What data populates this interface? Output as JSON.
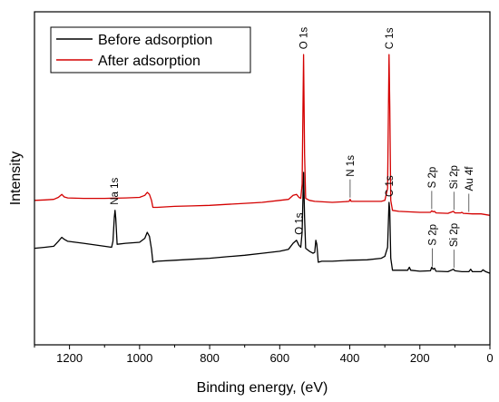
{
  "chart_data": {
    "type": "line",
    "xlabel": "Binding energy, (eV)",
    "ylabel": "Intensity",
    "xlim": [
      1300,
      0
    ],
    "x_reversed": true,
    "xticks": [
      1200,
      1000,
      800,
      600,
      400,
      200,
      0
    ],
    "y_ticks_shown": false,
    "legend": {
      "placement": "top-left"
    },
    "series": [
      {
        "name": "Before adsorption",
        "color": "#000000",
        "baseline": 0.0,
        "points": [
          [
            1300,
            0.24
          ],
          [
            1270,
            0.25
          ],
          [
            1245,
            0.26
          ],
          [
            1232,
            0.31
          ],
          [
            1222,
            0.35
          ],
          [
            1215,
            0.33
          ],
          [
            1205,
            0.31
          ],
          [
            1160,
            0.29
          ],
          [
            1100,
            0.26
          ],
          [
            1080,
            0.25
          ],
          [
            1076,
            0.31
          ],
          [
            1072,
            0.55
          ],
          [
            1070,
            0.62
          ],
          [
            1068,
            0.54
          ],
          [
            1064,
            0.28
          ],
          [
            1040,
            0.29
          ],
          [
            1000,
            0.3
          ],
          [
            985,
            0.34
          ],
          [
            978,
            0.4
          ],
          [
            972,
            0.36
          ],
          [
            966,
            0.23
          ],
          [
            962,
            0.1
          ],
          [
            950,
            0.11
          ],
          [
            900,
            0.12
          ],
          [
            850,
            0.13
          ],
          [
            800,
            0.14
          ],
          [
            750,
            0.155
          ],
          [
            700,
            0.17
          ],
          [
            650,
            0.19
          ],
          [
            600,
            0.21
          ],
          [
            575,
            0.23
          ],
          [
            562,
            0.29
          ],
          [
            552,
            0.32
          ],
          [
            545,
            0.27
          ],
          [
            540,
            0.25
          ],
          [
            536,
            0.4
          ],
          [
            532,
            1.0
          ],
          [
            529,
            0.55
          ],
          [
            526,
            0.24
          ],
          [
            515,
            0.21
          ],
          [
            505,
            0.19
          ],
          [
            500,
            0.2
          ],
          [
            497,
            0.32
          ],
          [
            494,
            0.28
          ],
          [
            490,
            0.1
          ],
          [
            480,
            0.11
          ],
          [
            450,
            0.11
          ],
          [
            400,
            0.12
          ],
          [
            350,
            0.125
          ],
          [
            310,
            0.14
          ],
          [
            300,
            0.16
          ],
          [
            292,
            0.25
          ],
          [
            288,
            0.7
          ],
          [
            286,
            0.62
          ],
          [
            283,
            0.14
          ],
          [
            278,
            0.02
          ],
          [
            260,
            0.02
          ],
          [
            235,
            0.02
          ],
          [
            230,
            0.05
          ],
          [
            226,
            0.02
          ],
          [
            200,
            0.01
          ],
          [
            170,
            0.015
          ],
          [
            166,
            0.05
          ],
          [
            162,
            0.03
          ],
          [
            158,
            0.04
          ],
          [
            154,
            0.01
          ],
          [
            120,
            0.005
          ],
          [
            104,
            0.03
          ],
          [
            100,
            0.015
          ],
          [
            80,
            0.005
          ],
          [
            60,
            0.005
          ],
          [
            55,
            0.03
          ],
          [
            50,
            0.005
          ],
          [
            25,
            0.005
          ],
          [
            20,
            0.025
          ],
          [
            12,
            0.005
          ],
          [
            0,
            -0.01
          ]
        ]
      },
      {
        "name": "After adsorption",
        "color": "#d40000",
        "baseline": 0.58,
        "points": [
          [
            1300,
            0.14
          ],
          [
            1270,
            0.145
          ],
          [
            1245,
            0.15
          ],
          [
            1232,
            0.17
          ],
          [
            1222,
            0.2
          ],
          [
            1215,
            0.175
          ],
          [
            1205,
            0.165
          ],
          [
            1160,
            0.16
          ],
          [
            1100,
            0.16
          ],
          [
            1040,
            0.165
          ],
          [
            1000,
            0.17
          ],
          [
            985,
            0.19
          ],
          [
            978,
            0.22
          ],
          [
            972,
            0.2
          ],
          [
            966,
            0.14
          ],
          [
            962,
            0.07
          ],
          [
            950,
            0.07
          ],
          [
            900,
            0.08
          ],
          [
            850,
            0.085
          ],
          [
            800,
            0.09
          ],
          [
            750,
            0.1
          ],
          [
            700,
            0.11
          ],
          [
            650,
            0.12
          ],
          [
            600,
            0.14
          ],
          [
            575,
            0.15
          ],
          [
            562,
            0.19
          ],
          [
            552,
            0.2
          ],
          [
            545,
            0.17
          ],
          [
            540,
            0.16
          ],
          [
            536,
            0.3
          ],
          [
            532,
            1.6
          ],
          [
            529,
            0.6
          ],
          [
            526,
            0.16
          ],
          [
            515,
            0.14
          ],
          [
            500,
            0.13
          ],
          [
            450,
            0.12
          ],
          [
            420,
            0.125
          ],
          [
            402,
            0.13
          ],
          [
            399,
            0.15
          ],
          [
            396,
            0.13
          ],
          [
            350,
            0.13
          ],
          [
            310,
            0.13
          ],
          [
            300,
            0.14
          ],
          [
            292,
            0.26
          ],
          [
            288,
            1.6
          ],
          [
            286,
            1.1
          ],
          [
            283,
            0.14
          ],
          [
            278,
            0.04
          ],
          [
            260,
            0.03
          ],
          [
            200,
            0.02
          ],
          [
            170,
            0.02
          ],
          [
            166,
            0.035
          ],
          [
            162,
            0.025
          ],
          [
            158,
            0.03
          ],
          [
            154,
            0.015
          ],
          [
            120,
            0.01
          ],
          [
            104,
            0.03
          ],
          [
            100,
            0.015
          ],
          [
            84,
            0.015
          ],
          [
            80,
            0.02
          ],
          [
            76,
            0.01
          ],
          [
            50,
            0.005
          ],
          [
            25,
            0.005
          ],
          [
            0,
            -0.01
          ]
        ]
      }
    ],
    "annotations": [
      {
        "text": "O 1s",
        "series": 1,
        "x": 532
      },
      {
        "text": "C 1s",
        "series": 1,
        "x": 287
      },
      {
        "text": "N 1s",
        "series": 1,
        "x": 399
      },
      {
        "text": "S 2p",
        "series": 1,
        "x": 166
      },
      {
        "text": "Si 2p",
        "series": 1,
        "x": 103
      },
      {
        "text": "Au 4f",
        "series": 1,
        "x": 60
      },
      {
        "text": "O 1s",
        "series": 0,
        "x": 545
      },
      {
        "text": "C 1s",
        "series": 0,
        "x": 287
      },
      {
        "text": "Na 1s",
        "series": 0,
        "x": 1072
      },
      {
        "text": "S 2p",
        "series": 0,
        "x": 164
      },
      {
        "text": "Si 2p",
        "series": 0,
        "x": 103
      }
    ]
  }
}
